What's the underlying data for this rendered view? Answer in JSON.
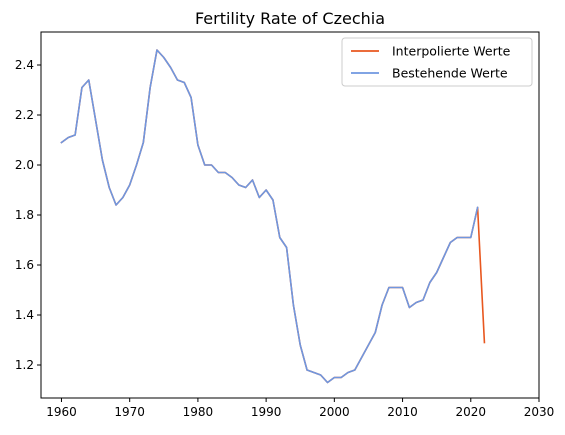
{
  "chart_data": {
    "type": "line",
    "title": "Fertility Rate of Czechia",
    "xlabel": "",
    "ylabel": "",
    "xlim": [
      1957,
      2030
    ],
    "ylim": [
      1.068,
      2.532
    ],
    "x_ticks": [
      1960,
      1970,
      1980,
      1990,
      2000,
      2010,
      2020,
      2030
    ],
    "y_ticks": [
      1.2,
      1.4,
      1.6,
      1.8,
      2.0,
      2.2,
      2.4
    ],
    "x_tick_labels": [
      "1960",
      "1970",
      "1980",
      "1990",
      "2000",
      "2010",
      "2020",
      "2030"
    ],
    "y_tick_labels": [
      "1.2",
      "1.4",
      "1.6",
      "1.8",
      "2.0",
      "2.2",
      "2.4"
    ],
    "grid": false,
    "legend_position": "top-right",
    "series": [
      {
        "name": "Interpolierte Werte",
        "color": "#e8571f",
        "x": [
          1960,
          1961,
          1962,
          1963,
          1964,
          1965,
          1966,
          1967,
          1968,
          1969,
          1970,
          1971,
          1972,
          1973,
          1974,
          1975,
          1976,
          1977,
          1978,
          1979,
          1980,
          1981,
          1982,
          1983,
          1984,
          1985,
          1986,
          1987,
          1988,
          1989,
          1990,
          1991,
          1992,
          1993,
          1994,
          1995,
          1996,
          1997,
          1998,
          1999,
          2000,
          2001,
          2002,
          2003,
          2004,
          2005,
          2006,
          2007,
          2008,
          2009,
          2010,
          2011,
          2012,
          2013,
          2014,
          2015,
          2016,
          2017,
          2018,
          2019,
          2020,
          2021,
          2022
        ],
        "y": [
          2.09,
          2.11,
          2.12,
          2.31,
          2.34,
          2.18,
          2.02,
          1.91,
          1.84,
          1.87,
          1.92,
          2.0,
          2.09,
          2.31,
          2.46,
          2.43,
          2.39,
          2.34,
          2.33,
          2.27,
          2.08,
          2.0,
          2.0,
          1.97,
          1.97,
          1.95,
          1.92,
          1.91,
          1.94,
          1.87,
          1.9,
          1.86,
          1.71,
          1.67,
          1.44,
          1.28,
          1.18,
          1.17,
          1.16,
          1.13,
          1.15,
          1.15,
          1.17,
          1.18,
          1.23,
          1.28,
          1.33,
          1.44,
          1.51,
          1.51,
          1.51,
          1.43,
          1.45,
          1.46,
          1.53,
          1.57,
          1.63,
          1.69,
          1.71,
          1.71,
          1.71,
          1.83,
          1.29
        ]
      },
      {
        "name": "Bestehende Werte",
        "color": "#6f97e0",
        "x": [
          1960,
          1961,
          1962,
          1963,
          1964,
          1965,
          1966,
          1967,
          1968,
          1969,
          1970,
          1971,
          1972,
          1973,
          1974,
          1975,
          1976,
          1977,
          1978,
          1979,
          1980,
          1981,
          1982,
          1983,
          1984,
          1985,
          1986,
          1987,
          1988,
          1989,
          1990,
          1991,
          1992,
          1993,
          1994,
          1995,
          1996,
          1997,
          1998,
          1999,
          2000,
          2001,
          2002,
          2003,
          2004,
          2005,
          2006,
          2007,
          2008,
          2009,
          2010,
          2011,
          2012,
          2013,
          2014,
          2015,
          2016,
          2017,
          2018,
          2019,
          2020,
          2021
        ],
        "y": [
          2.09,
          2.11,
          2.12,
          2.31,
          2.34,
          2.18,
          2.02,
          1.91,
          1.84,
          1.87,
          1.92,
          2.0,
          2.09,
          2.31,
          2.46,
          2.43,
          2.39,
          2.34,
          2.33,
          2.27,
          2.08,
          2.0,
          2.0,
          1.97,
          1.97,
          1.95,
          1.92,
          1.91,
          1.94,
          1.87,
          1.9,
          1.86,
          1.71,
          1.67,
          1.44,
          1.28,
          1.18,
          1.17,
          1.16,
          1.13,
          1.15,
          1.15,
          1.17,
          1.18,
          1.23,
          1.28,
          1.33,
          1.44,
          1.51,
          1.51,
          1.51,
          1.43,
          1.45,
          1.46,
          1.53,
          1.57,
          1.63,
          1.69,
          1.71,
          1.71,
          1.71,
          1.83
        ]
      }
    ]
  }
}
